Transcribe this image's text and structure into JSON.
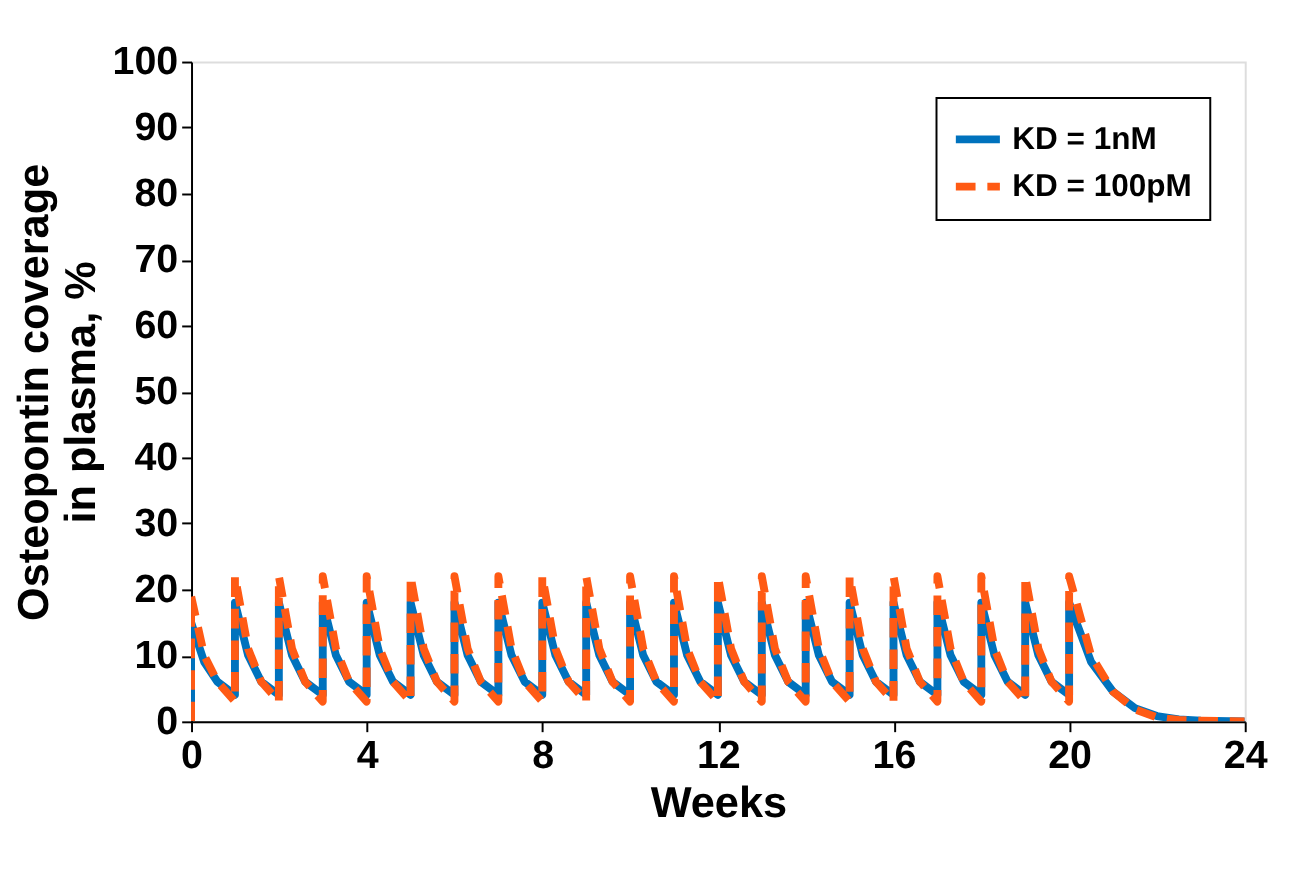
{
  "chart_data": {
    "type": "line",
    "xlabel": "Weeks",
    "ylabel": "Osteopontin coverage in plasma, %",
    "xlim": [
      0,
      24
    ],
    "xticks": [
      0,
      4,
      8,
      12,
      16,
      20,
      24
    ],
    "ylim": [
      0,
      100
    ],
    "yticks": [
      0,
      10,
      20,
      30,
      40,
      50,
      60,
      70,
      80,
      90,
      100
    ],
    "grid": false,
    "legend": "top right",
    "marker": "none",
    "series": [
      {
        "name": "KD = 1nM",
        "color": "#0072bd",
        "line_style": "solid",
        "x": [
          0,
          0,
          0.3,
          0.6,
          1,
          1,
          1.3,
          1.6,
          2,
          2,
          2.3,
          2.6,
          3,
          3,
          3.3,
          3.6,
          4,
          4,
          4.3,
          4.6,
          5,
          5,
          5.3,
          5.6,
          6,
          6,
          6.3,
          6.6,
          7,
          7,
          7.3,
          7.6,
          8,
          8,
          8.3,
          8.6,
          9,
          9,
          9.3,
          9.6,
          10,
          10,
          10.3,
          10.6,
          11,
          11,
          11.3,
          11.6,
          12,
          12,
          12.3,
          12.6,
          13,
          13,
          13.3,
          13.6,
          14,
          14,
          14.3,
          14.6,
          15,
          15,
          15.3,
          15.6,
          16,
          16,
          16.3,
          16.6,
          17,
          17,
          17.3,
          17.6,
          18,
          18,
          18.3,
          18.6,
          19,
          19,
          19.3,
          19.6,
          20,
          20,
          20.5,
          21,
          21.5,
          22,
          22.5,
          23,
          24
        ],
        "values": [
          0,
          15,
          9,
          6,
          4,
          18,
          10,
          6,
          4,
          18,
          10,
          6,
          4,
          18,
          10,
          6,
          4,
          18,
          10,
          6,
          4,
          18,
          10,
          6,
          4,
          18,
          10,
          6,
          4,
          18,
          10,
          6,
          4,
          18,
          10,
          6,
          4,
          18,
          10,
          6,
          4,
          18,
          10,
          6,
          4,
          18,
          10,
          6,
          4,
          18,
          10,
          6,
          4,
          18,
          10,
          6,
          4,
          18,
          10,
          6,
          4,
          18,
          10,
          6,
          4,
          18,
          10,
          6,
          4,
          18,
          10,
          6,
          4,
          18,
          10,
          6,
          4,
          18,
          10,
          6,
          4,
          18,
          9,
          4.5,
          2,
          0.8,
          0.3,
          0.1,
          0
        ]
      },
      {
        "name": "KD = 100pM",
        "color": "#ff5a14",
        "line_style": "dashed",
        "x": [
          0,
          0,
          0.3,
          0.6,
          1,
          1,
          1.3,
          1.6,
          2,
          2,
          2.3,
          2.6,
          3,
          3,
          3.3,
          3.6,
          4,
          4,
          4.3,
          4.6,
          5,
          5,
          5.3,
          5.6,
          6,
          6,
          6.3,
          6.6,
          7,
          7,
          7.3,
          7.6,
          8,
          8,
          8.3,
          8.6,
          9,
          9,
          9.3,
          9.6,
          10,
          10,
          10.3,
          10.6,
          11,
          11,
          11.3,
          11.6,
          12,
          12,
          12.3,
          12.6,
          13,
          13,
          13.3,
          13.6,
          14,
          14,
          14.3,
          14.6,
          15,
          15,
          15.3,
          15.6,
          16,
          16,
          16.3,
          16.6,
          17,
          17,
          17.3,
          17.6,
          18,
          18,
          18.3,
          18.6,
          19,
          19,
          19.3,
          19.6,
          20,
          20,
          20.5,
          21,
          21.5,
          22,
          22.5,
          23,
          24
        ],
        "values": [
          0,
          19,
          10,
          6,
          3,
          22,
          11,
          6,
          3,
          22,
          11,
          6,
          3,
          22,
          11,
          6,
          3,
          22,
          11,
          6,
          3,
          22,
          11,
          6,
          3,
          22,
          11,
          6,
          3,
          22,
          11,
          6,
          3,
          22,
          11,
          6,
          3,
          22,
          11,
          6,
          3,
          22,
          11,
          6,
          3,
          22,
          11,
          6,
          3,
          22,
          11,
          6,
          3,
          22,
          11,
          6,
          3,
          22,
          11,
          6,
          3,
          22,
          11,
          6,
          3,
          22,
          11,
          6,
          3,
          22,
          11,
          6,
          3,
          22,
          11,
          6,
          3,
          22,
          11,
          6,
          3,
          22,
          10,
          4.5,
          1.8,
          0.6,
          0.2,
          0.1,
          0
        ]
      }
    ]
  }
}
